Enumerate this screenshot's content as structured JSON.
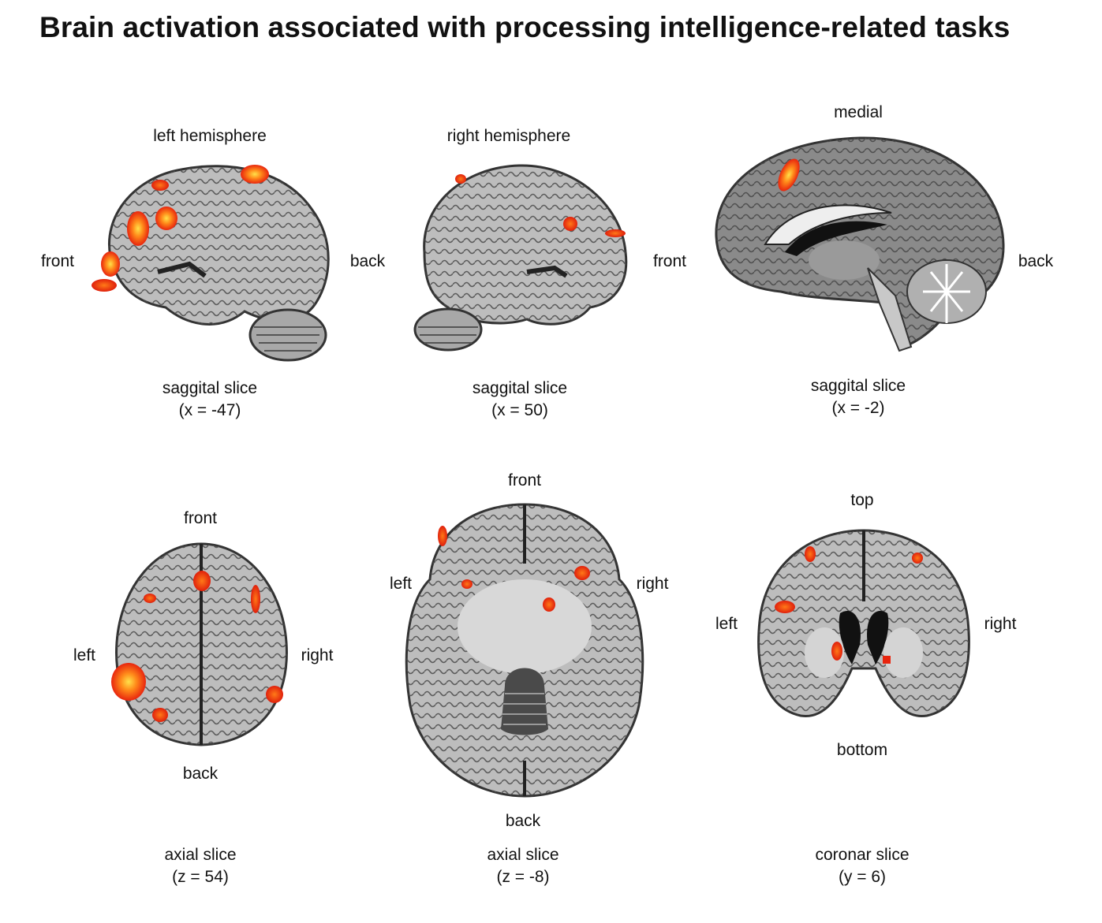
{
  "title": "Brain activation associated with processing intelligence-related tasks",
  "panels": [
    {
      "view": "sagittal-left",
      "top_label": "left hemisphere",
      "left_label": "front",
      "right_label": "back",
      "caption_line1": "saggital slice",
      "caption_line2": "(x = -47)"
    },
    {
      "view": "sagittal-right",
      "top_label": "right hemisphere",
      "left_label": "front",
      "right_label": "",
      "caption_line1": "saggital slice",
      "caption_line2": "(x = 50)"
    },
    {
      "view": "sagittal-medial",
      "top_label": "medial",
      "left_label": "",
      "right_label": "back",
      "caption_line1": "saggital slice",
      "caption_line2": "(x = -2)"
    },
    {
      "view": "axial",
      "top_label": "front",
      "bottom_label": "back",
      "left_label": "left",
      "right_label": "right",
      "caption_line1": "axial slice",
      "caption_line2": "(z = 54)"
    },
    {
      "view": "axial",
      "top_label": "front",
      "bottom_label": "back",
      "left_label": "left",
      "right_label": "right",
      "caption_line1": "axial slice",
      "caption_line2": "(z = -8)"
    },
    {
      "view": "coronal",
      "top_label": "top",
      "bottom_label": "bottom",
      "left_label": "left",
      "right_label": "right",
      "caption_line1": "coronar slice",
      "caption_line2": "(y = 6)"
    }
  ],
  "colors": {
    "tissue": "#bdbdbd",
    "tissue_dark": "#5a5a5a",
    "white_matter": "#e6e6e6",
    "activation_core": "#ffe14a",
    "activation_mid": "#ff8a1a",
    "activation_edge": "#e8250e"
  }
}
